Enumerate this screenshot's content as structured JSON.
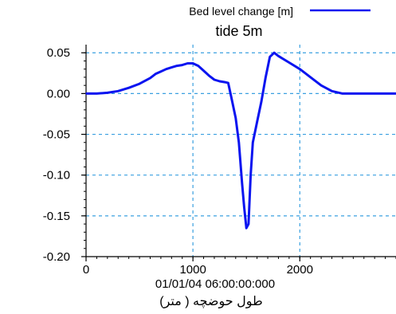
{
  "chart_data": {
    "type": "line",
    "legend": {
      "label": "Bed level change [m]",
      "placement": "top-right"
    },
    "title": "tide 5m",
    "xlabel_time": "01/01/04 06:00:00:000",
    "xlabel": "طول حوضچه ( متر)",
    "ylabel": "",
    "xlim": [
      0,
      2900
    ],
    "ylim": [
      -0.2,
      0.06
    ],
    "x_ticks": [
      0,
      1000,
      2000
    ],
    "x_tick_labels": [
      "0",
      "1000",
      "2000"
    ],
    "y_ticks": [
      0.05,
      0.0,
      -0.05,
      -0.1,
      -0.15,
      -0.2
    ],
    "y_tick_labels": [
      "0.05",
      "0.00",
      "-0.05",
      "-0.10",
      "-0.15",
      "-0.20"
    ],
    "grid": true,
    "colors": {
      "series": "#0a14f0",
      "grid": "#3aa0e0",
      "axes": "#000000"
    },
    "series": [
      {
        "name": "Bed level change [m]",
        "x": [
          0,
          100,
          200,
          300,
          400,
          500,
          600,
          650,
          700,
          750,
          800,
          850,
          900,
          950,
          1000,
          1050,
          1100,
          1150,
          1200,
          1250,
          1300,
          1330,
          1360,
          1400,
          1430,
          1460,
          1480,
          1500,
          1520,
          1540,
          1560,
          1600,
          1640,
          1680,
          1720,
          1760,
          1800,
          1900,
          2000,
          2100,
          2200,
          2300,
          2400,
          2500,
          2600,
          2700,
          2800,
          2900
        ],
        "y": [
          0.0,
          0.0,
          0.001,
          0.003,
          0.007,
          0.012,
          0.019,
          0.024,
          0.027,
          0.03,
          0.032,
          0.034,
          0.035,
          0.037,
          0.037,
          0.034,
          0.028,
          0.022,
          0.017,
          0.015,
          0.014,
          0.013,
          -0.005,
          -0.03,
          -0.06,
          -0.11,
          -0.14,
          -0.165,
          -0.16,
          -0.1,
          -0.06,
          -0.035,
          -0.01,
          0.02,
          0.045,
          0.05,
          0.046,
          0.038,
          0.03,
          0.02,
          0.01,
          0.003,
          0.0,
          0.0,
          0.0,
          0.0,
          0.0,
          0.0
        ]
      }
    ]
  }
}
